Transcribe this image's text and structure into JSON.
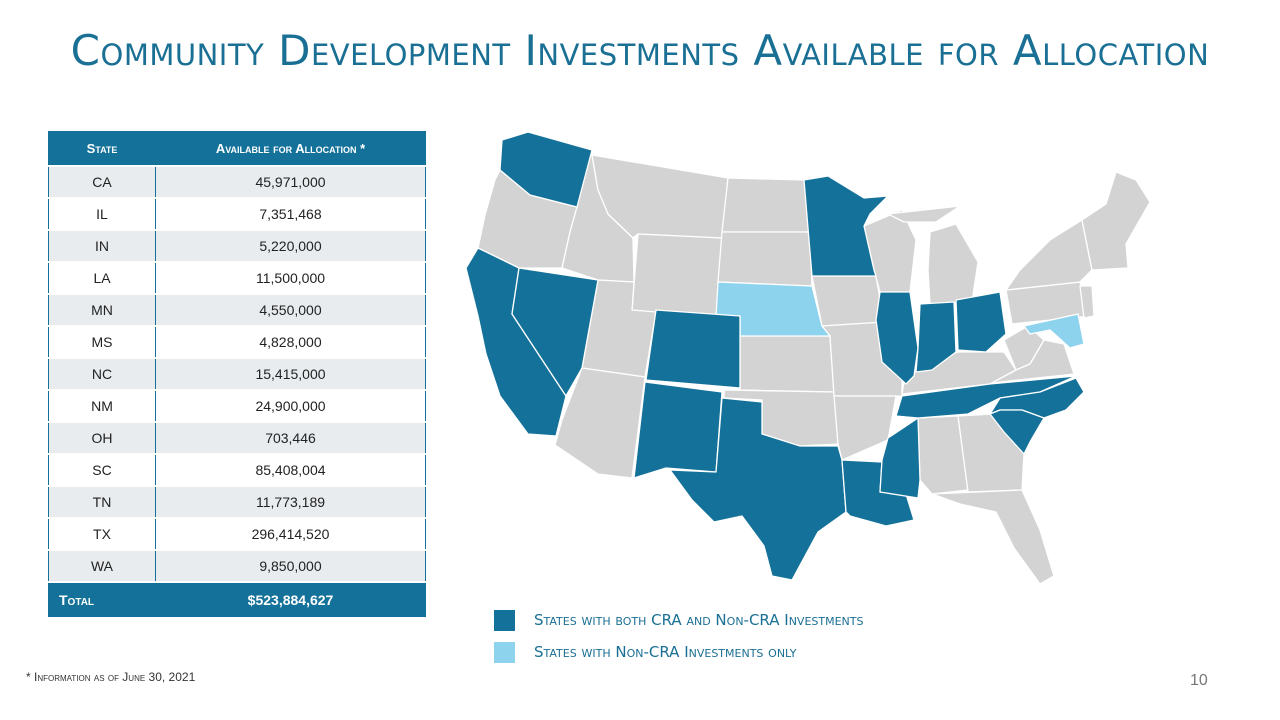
{
  "title": "Community Development Investments Available for Allocation",
  "table": {
    "header_state": "State",
    "header_amount": "Available for Allocation *",
    "rows": [
      {
        "state": "CA",
        "amount": "45,971,000"
      },
      {
        "state": "IL",
        "amount": "7,351,468"
      },
      {
        "state": "IN",
        "amount": "5,220,000"
      },
      {
        "state": "LA",
        "amount": "11,500,000"
      },
      {
        "state": "MN",
        "amount": "4,550,000"
      },
      {
        "state": "MS",
        "amount": "4,828,000"
      },
      {
        "state": "NC",
        "amount": "15,415,000"
      },
      {
        "state": "NM",
        "amount": "24,900,000"
      },
      {
        "state": "OH",
        "amount": "703,446"
      },
      {
        "state": "SC",
        "amount": "85,408,004"
      },
      {
        "state": "TN",
        "amount": "11,773,189"
      },
      {
        "state": "TX",
        "amount": "296,414,520"
      },
      {
        "state": "WA",
        "amount": "9,850,000"
      }
    ],
    "total_label": "Total",
    "total_amount": "$523,884,627"
  },
  "legend": {
    "both_label": "States with both CRA and Non-CRA Investments",
    "non_cra_label": "States with Non-CRA Investments only"
  },
  "colors": {
    "both": "#14729a",
    "non_cra": "#8ed3ee",
    "other": "#d3d3d3"
  },
  "map": {
    "both_states": [
      "CA",
      "IL",
      "IN",
      "LA",
      "MN",
      "MS",
      "NC",
      "NM",
      "OH",
      "SC",
      "TN",
      "TX",
      "WA",
      "NV",
      "CO"
    ],
    "non_cra_states": [
      "NE",
      "MD"
    ]
  },
  "footnote": "* Information as of June 30, 2021",
  "page_number": "10"
}
